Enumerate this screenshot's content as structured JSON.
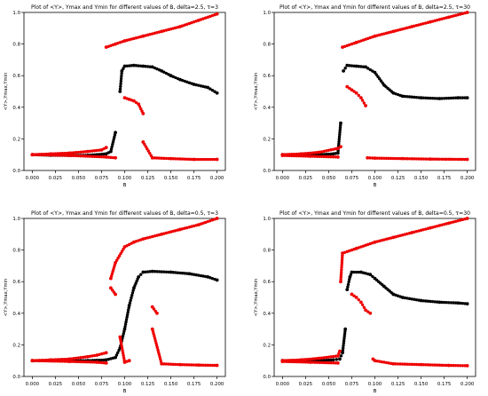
{
  "colors": {
    "mean": "#000000",
    "extrema": "#ee0000",
    "axis": "#000000"
  },
  "chart_data": [
    {
      "type": "scatter",
      "title": "Plot of <Y>, Ymax and Ymin for different values of B, delta=2.5, τ=3",
      "xlabel": "B",
      "ylabel": "<Y>,Ymax,Ymin",
      "xlim": [
        -0.009,
        0.209
      ],
      "ylim": [
        0,
        1.0
      ],
      "xticks": [
        "0.000",
        "0.025",
        "0.050",
        "0.075",
        "0.100",
        "0.125",
        "0.150",
        "0.175",
        "0.200"
      ],
      "yticks": [
        "0.0",
        "0.2",
        "0.4",
        "0.6",
        "0.8",
        "1.0"
      ],
      "grid": false,
      "series": [
        {
          "key": "mean",
          "color": "#000000",
          "points": [
            [
              0.0,
              0.1
            ],
            [
              0.02,
              0.096
            ],
            [
              0.04,
              0.095
            ],
            [
              0.06,
              0.096
            ],
            [
              0.08,
              0.105
            ],
            [
              0.085,
              0.12
            ],
            [
              0.09,
              0.24
            ],
            [
              0.095,
              0.5
            ],
            [
              0.097,
              0.63
            ],
            [
              0.1,
              0.66
            ],
            [
              0.11,
              0.665
            ],
            [
              0.12,
              0.66
            ],
            [
              0.13,
              0.655
            ],
            [
              0.14,
              0.63
            ],
            [
              0.15,
              0.6
            ],
            [
              0.16,
              0.575
            ],
            [
              0.175,
              0.545
            ],
            [
              0.19,
              0.525
            ],
            [
              0.2,
              0.49
            ]
          ]
        },
        {
          "key": "ymax",
          "color": "#ee0000",
          "points": [
            [
              0.0,
              0.1
            ],
            [
              0.02,
              0.105
            ],
            [
              0.04,
              0.11
            ],
            [
              0.06,
              0.12
            ],
            [
              0.075,
              0.13
            ],
            [
              0.08,
              0.145
            ],
            [
              0.08,
              0.78
            ],
            [
              0.09,
              0.8
            ],
            [
              0.1,
              0.82
            ],
            [
              0.12,
              0.85
            ],
            [
              0.14,
              0.88
            ],
            [
              0.16,
              0.91
            ],
            [
              0.18,
              0.95
            ],
            [
              0.2,
              0.99
            ]
          ]
        },
        {
          "key": "ymin",
          "color": "#ee0000",
          "points": [
            [
              0.0,
              0.1
            ],
            [
              0.04,
              0.095
            ],
            [
              0.08,
              0.085
            ],
            [
              0.09,
              0.08
            ],
            [
              0.1,
              0.46
            ],
            [
              0.105,
              0.45
            ],
            [
              0.11,
              0.44
            ],
            [
              0.115,
              0.42
            ],
            [
              0.12,
              0.36
            ],
            [
              0.12,
              0.18
            ],
            [
              0.13,
              0.08
            ],
            [
              0.15,
              0.075
            ],
            [
              0.175,
              0.07
            ],
            [
              0.2,
              0.07
            ]
          ]
        }
      ]
    },
    {
      "type": "scatter",
      "title": "Plot of <Y>, Ymax and Ymin for different values of B, delta=2.5, τ=30",
      "xlabel": "B",
      "ylabel": "<Y>,Ymax,Ymin",
      "xlim": [
        -0.009,
        0.209
      ],
      "ylim": [
        0,
        1.0
      ],
      "xticks": [
        "0.000",
        "0.025",
        "0.050",
        "0.075",
        "0.100",
        "0.125",
        "0.150",
        "0.175",
        "0.200"
      ],
      "yticks": [
        "0.0",
        "0.2",
        "0.4",
        "0.6",
        "0.8",
        "1.0"
      ],
      "grid": false,
      "series": [
        {
          "key": "mean",
          "color": "#000000",
          "points": [
            [
              0.0,
              0.1
            ],
            [
              0.02,
              0.097
            ],
            [
              0.04,
              0.1
            ],
            [
              0.055,
              0.105
            ],
            [
              0.06,
              0.11
            ],
            [
              0.063,
              0.3
            ],
            [
              0.066,
              0.63
            ],
            [
              0.07,
              0.665
            ],
            [
              0.08,
              0.66
            ],
            [
              0.09,
              0.655
            ],
            [
              0.1,
              0.62
            ],
            [
              0.11,
              0.54
            ],
            [
              0.12,
              0.49
            ],
            [
              0.13,
              0.47
            ],
            [
              0.15,
              0.46
            ],
            [
              0.17,
              0.455
            ],
            [
              0.19,
              0.46
            ],
            [
              0.2,
              0.46
            ]
          ]
        },
        {
          "key": "ymax",
          "color": "#ee0000",
          "points": [
            [
              0.0,
              0.1
            ],
            [
              0.02,
              0.105
            ],
            [
              0.04,
              0.115
            ],
            [
              0.06,
              0.14
            ],
            [
              0.063,
              0.15
            ],
            [
              0.065,
              0.78
            ],
            [
              0.08,
              0.81
            ],
            [
              0.1,
              0.85
            ],
            [
              0.12,
              0.88
            ],
            [
              0.14,
              0.91
            ],
            [
              0.16,
              0.94
            ],
            [
              0.18,
              0.97
            ],
            [
              0.2,
              1.0
            ]
          ]
        },
        {
          "key": "ymin",
          "color": "#ee0000",
          "points": [
            [
              0.0,
              0.095
            ],
            [
              0.03,
              0.09
            ],
            [
              0.06,
              0.085
            ],
            [
              0.07,
              0.53
            ],
            [
              0.075,
              0.51
            ],
            [
              0.08,
              0.49
            ],
            [
              0.085,
              0.46
            ],
            [
              0.09,
              0.41
            ],
            [
              0.092,
              0.08
            ],
            [
              0.1,
              0.078
            ],
            [
              0.13,
              0.075
            ],
            [
              0.16,
              0.072
            ],
            [
              0.2,
              0.07
            ]
          ]
        }
      ]
    },
    {
      "type": "scatter",
      "title": "Plot of <Y>, Ymax and Ymin for different values of B, delta=0.5, τ=3",
      "xlabel": "B",
      "ylabel": "<Y>,Ymax,Ymin",
      "xlim": [
        -0.009,
        0.209
      ],
      "ylim": [
        0,
        1.0
      ],
      "xticks": [
        "0.000",
        "0.025",
        "0.050",
        "0.075",
        "0.100",
        "0.125",
        "0.150",
        "0.175",
        "0.200"
      ],
      "yticks": [
        "0.0",
        "0.2",
        "0.4",
        "0.6",
        "0.8",
        "1.0"
      ],
      "grid": false,
      "series": [
        {
          "key": "mean",
          "color": "#000000",
          "points": [
            [
              0.0,
              0.1
            ],
            [
              0.02,
              0.1
            ],
            [
              0.04,
              0.1
            ],
            [
              0.06,
              0.1
            ],
            [
              0.08,
              0.105
            ],
            [
              0.09,
              0.12
            ],
            [
              0.095,
              0.18
            ],
            [
              0.1,
              0.3
            ],
            [
              0.105,
              0.45
            ],
            [
              0.11,
              0.56
            ],
            [
              0.115,
              0.63
            ],
            [
              0.12,
              0.66
            ],
            [
              0.13,
              0.665
            ],
            [
              0.15,
              0.66
            ],
            [
              0.17,
              0.65
            ],
            [
              0.19,
              0.63
            ],
            [
              0.2,
              0.61
            ]
          ]
        },
        {
          "key": "ymax",
          "color": "#ee0000",
          "points": [
            [
              0.0,
              0.1
            ],
            [
              0.02,
              0.105
            ],
            [
              0.04,
              0.11
            ],
            [
              0.06,
              0.125
            ],
            [
              0.07,
              0.135
            ],
            [
              0.08,
              0.15
            ],
            [
              0.085,
              0.62
            ],
            [
              0.09,
              0.72
            ],
            [
              0.1,
              0.82
            ],
            [
              0.11,
              0.85
            ],
            [
              0.12,
              0.87
            ],
            [
              0.14,
              0.9
            ],
            [
              0.16,
              0.93
            ],
            [
              0.18,
              0.96
            ],
            [
              0.2,
              1.0
            ]
          ]
        },
        {
          "key": "ymin",
          "color": "#ee0000",
          "points": [
            [
              0.0,
              0.1
            ],
            [
              0.04,
              0.095
            ],
            [
              0.07,
              0.09
            ],
            [
              0.08,
              0.085
            ],
            [
              0.085,
              0.56
            ],
            [
              0.09,
              0.52
            ],
            [
              0.095,
              0.25
            ],
            [
              0.1,
              0.09
            ],
            [
              0.105,
              0.1
            ],
            [
              0.13,
              0.44
            ],
            [
              0.135,
              0.4
            ],
            [
              0.13,
              0.3
            ],
            [
              0.14,
              0.08
            ],
            [
              0.16,
              0.075
            ],
            [
              0.18,
              0.072
            ],
            [
              0.2,
              0.07
            ]
          ]
        }
      ]
    },
    {
      "type": "scatter",
      "title": "Plot of <Y>, Ymax and Ymin for different values of B, delta=0.5, τ=30",
      "xlabel": "B",
      "ylabel": "<Y>,Ymax,Ymin",
      "xlim": [
        -0.009,
        0.209
      ],
      "ylim": [
        0,
        1.0
      ],
      "xticks": [
        "0.000",
        "0.025",
        "0.050",
        "0.075",
        "0.100",
        "0.125",
        "0.150",
        "0.175",
        "0.200"
      ],
      "yticks": [
        "0.0",
        "0.2",
        "0.4",
        "0.6",
        "0.8",
        "1.0"
      ],
      "grid": false,
      "series": [
        {
          "key": "mean",
          "color": "#000000",
          "points": [
            [
              0.0,
              0.1
            ],
            [
              0.02,
              0.1
            ],
            [
              0.04,
              0.1
            ],
            [
              0.055,
              0.105
            ],
            [
              0.062,
              0.11
            ],
            [
              0.065,
              0.15
            ],
            [
              0.068,
              0.3
            ],
            [
              0.07,
              0.55
            ],
            [
              0.073,
              0.63
            ],
            [
              0.075,
              0.66
            ],
            [
              0.085,
              0.66
            ],
            [
              0.095,
              0.645
            ],
            [
              0.1,
              0.62
            ],
            [
              0.11,
              0.57
            ],
            [
              0.12,
              0.52
            ],
            [
              0.13,
              0.5
            ],
            [
              0.15,
              0.48
            ],
            [
              0.17,
              0.47
            ],
            [
              0.19,
              0.465
            ],
            [
              0.2,
              0.46
            ]
          ]
        },
        {
          "key": "ymax",
          "color": "#ee0000",
          "points": [
            [
              0.0,
              0.1
            ],
            [
              0.02,
              0.105
            ],
            [
              0.04,
              0.115
            ],
            [
              0.06,
              0.13
            ],
            [
              0.062,
              0.16
            ],
            [
              0.063,
              0.6
            ],
            [
              0.065,
              0.78
            ],
            [
              0.08,
              0.81
            ],
            [
              0.1,
              0.85
            ],
            [
              0.12,
              0.88
            ],
            [
              0.14,
              0.91
            ],
            [
              0.16,
              0.94
            ],
            [
              0.18,
              0.97
            ],
            [
              0.2,
              1.0
            ]
          ]
        },
        {
          "key": "ymin",
          "color": "#ee0000",
          "points": [
            [
              0.0,
              0.095
            ],
            [
              0.03,
              0.09
            ],
            [
              0.06,
              0.085
            ],
            [
              0.075,
              0.52
            ],
            [
              0.08,
              0.5
            ],
            [
              0.085,
              0.47
            ],
            [
              0.09,
              0.42
            ],
            [
              0.095,
              0.4
            ],
            [
              0.098,
              0.11
            ],
            [
              0.1,
              0.1
            ],
            [
              0.12,
              0.08
            ],
            [
              0.15,
              0.075
            ],
            [
              0.18,
              0.07
            ],
            [
              0.2,
              0.068
            ]
          ]
        }
      ]
    }
  ]
}
